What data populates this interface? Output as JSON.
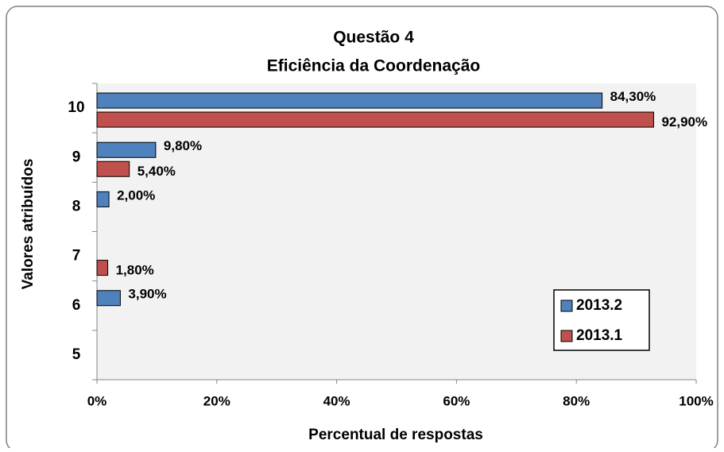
{
  "chart_data": {
    "type": "barh",
    "title": "Questão 4",
    "subtitle": "Eficiência da Coordenação",
    "xlabel": "Percentual de respostas",
    "ylabel": "Valores atribuídos",
    "categories": [
      "10",
      "9",
      "8",
      "7",
      "6",
      "5"
    ],
    "series": [
      {
        "name": "2013.2",
        "color": "#4f81bd",
        "values": [
          84.3,
          9.8,
          2.0,
          null,
          3.9,
          null
        ],
        "value_labels": [
          "84,30%",
          "9,80%",
          "2,00%",
          null,
          "3,90%",
          null
        ]
      },
      {
        "name": "2013.1",
        "color": "#c0504d",
        "values": [
          92.9,
          5.4,
          null,
          1.8,
          null,
          null
        ],
        "value_labels": [
          "92,90%",
          "5,40%",
          null,
          "1,80%",
          null,
          null
        ]
      }
    ],
    "xlim": [
      0,
      100
    ],
    "xticks": [
      {
        "value": 0,
        "label": "0%"
      },
      {
        "value": 20,
        "label": "20%"
      },
      {
        "value": 40,
        "label": "40%"
      },
      {
        "value": 60,
        "label": "60%"
      },
      {
        "value": 80,
        "label": "80%"
      },
      {
        "value": 100,
        "label": "100%"
      }
    ],
    "legend": "lower right"
  }
}
